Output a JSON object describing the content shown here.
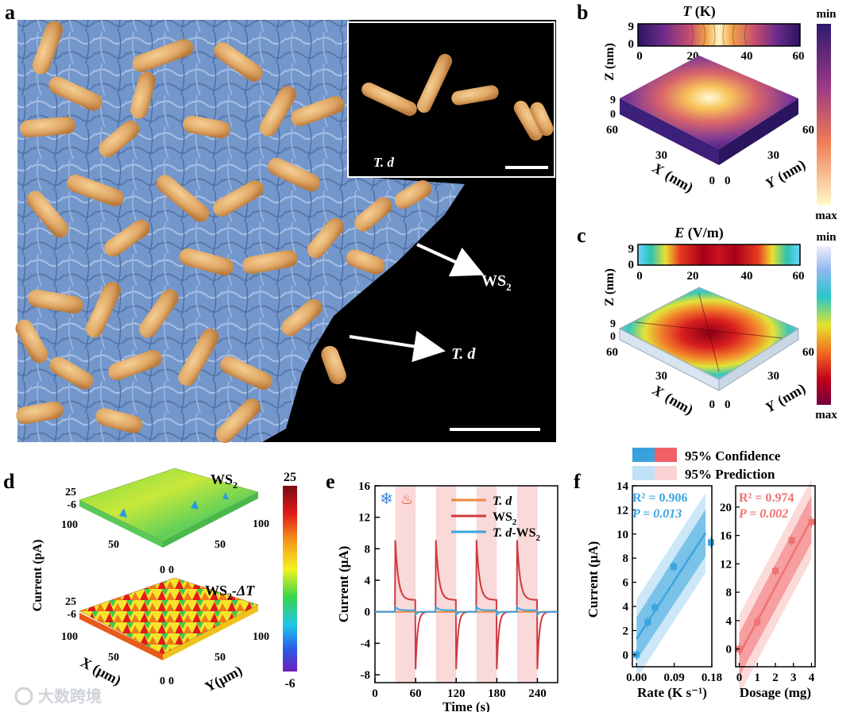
{
  "panels": {
    "a": {
      "letter": "a",
      "inset_label": "T. d",
      "arrow_label_ws2": "WS",
      "arrow_label_ws2_sub": "2",
      "arrow_label_td": "T. d",
      "colors": {
        "substrate": "#6f93c8",
        "bacteria": "#e0a866",
        "background": "#000000"
      }
    },
    "b": {
      "letter": "b",
      "title_sym": "T",
      "title_unit": " (K)",
      "z_label": "Z (nm)",
      "z_ticks": [
        "9",
        "0"
      ],
      "x_ticks": [
        "0",
        "20",
        "40",
        "60"
      ],
      "iso_x_label": "X (nm)",
      "iso_y_label": "Y (nm)",
      "iso_x_ticks": [
        "60",
        "30",
        "0"
      ],
      "iso_y_ticks": [
        "0",
        "30",
        "60"
      ],
      "iso_z_ticks": [
        "9",
        "0"
      ],
      "colorbar_top": "min",
      "colorbar_bottom": "max"
    },
    "c": {
      "letter": "c",
      "title_sym": "E",
      "title_unit": " (V/m)",
      "z_label": "Z (nm)",
      "z_ticks": [
        "9",
        "0"
      ],
      "x_ticks": [
        "0",
        "20",
        "40",
        "60"
      ],
      "iso_x_label": "X (nm)",
      "iso_y_label": "Y (nm)",
      "iso_x_ticks": [
        "60",
        "30",
        "0"
      ],
      "iso_y_ticks": [
        "0",
        "30",
        "60"
      ],
      "iso_z_ticks": [
        "9",
        "0"
      ],
      "colorbar_top": "min",
      "colorbar_bottom": "max"
    },
    "d": {
      "letter": "d",
      "top_label": "WS",
      "top_label_sub": "2",
      "bottom_label": "WS",
      "bottom_label_sub": "2",
      "bottom_label_suffix": "-ΔT",
      "z_label": "Current (pA)",
      "z_ticks": [
        "25",
        "-6"
      ],
      "x_label": "X (μm)",
      "y_label": "Y(μm)",
      "x_ticks": [
        "100",
        "50",
        "0"
      ],
      "y_ticks": [
        "0",
        "50",
        "100"
      ],
      "colorbar_max": "25",
      "colorbar_min": "-6"
    },
    "f": {
      "letter": "f",
      "legend_confidence": "95% Confidence",
      "legend_prediction": "95% Prediction",
      "ylabel": "Current (μA)",
      "left_stats": {
        "r2": "R² = 0.906",
        "p": "P = 0.013"
      },
      "right_stats": {
        "r2": "R² = 0.974",
        "p": "P = 0.002"
      }
    }
  },
  "chart_data": [
    {
      "type": "line",
      "panel": "e",
      "xlabel": "Time (s)",
      "ylabel": "Current (μA)",
      "xlim": [
        0,
        270
      ],
      "ylim": [
        -9,
        16
      ],
      "x_ticks": [
        0,
        60,
        120,
        180,
        240
      ],
      "y_ticks": [
        -8,
        -4,
        0,
        4,
        8,
        12,
        16
      ],
      "shaded_periods_s": [
        [
          30,
          60
        ],
        [
          90,
          120
        ],
        [
          150,
          180
        ],
        [
          210,
          240
        ]
      ],
      "legend": [
        "T. d",
        "WS2",
        "T. d-WS2"
      ],
      "series": [
        {
          "name": "T. d",
          "color": "#f0883c",
          "values_note": "~0 throughout"
        },
        {
          "name": "WS2",
          "color": "#cf3a3f",
          "on_peak": 9.1,
          "on_end": 1.5,
          "off_trough": -7.3
        },
        {
          "name": "T. d-WS2",
          "color": "#3aa6e0",
          "on_peak": 0.6,
          "off_trough": -0.4
        }
      ]
    },
    {
      "type": "scatter",
      "panel": "f-left",
      "xlabel": "Rate (K s⁻¹)",
      "ylabel": "Current (μA)",
      "xlim": [
        -0.01,
        0.18
      ],
      "ylim": [
        -1,
        14
      ],
      "x_ticks": [
        "0.00",
        "0.09",
        "0.18"
      ],
      "y_ticks": [
        0,
        2,
        4,
        6,
        8,
        10,
        12,
        14
      ],
      "color": "#3aa6e0",
      "x": [
        0.0,
        0.027,
        0.044,
        0.089,
        0.178
      ],
      "y": [
        0.0,
        2.7,
        3.9,
        7.3,
        9.3
      ],
      "fit": {
        "x": [
          0.0,
          0.165
        ],
        "y": [
          1.3,
          10.1
        ]
      }
    },
    {
      "type": "scatter",
      "panel": "f-right",
      "xlabel": "Dosage (mg)",
      "xlim": [
        -0.2,
        4.2
      ],
      "ylim": [
        -2.5,
        23
      ],
      "x_ticks": [
        0,
        1,
        2,
        3,
        4
      ],
      "y_ticks": [
        0,
        4,
        8,
        12,
        16,
        20
      ],
      "color": "#f07272",
      "x": [
        0,
        1,
        2,
        2.9,
        4
      ],
      "y": [
        0.0,
        3.8,
        11.0,
        15.3,
        17.9
      ],
      "fit": {
        "x": [
          0,
          4
        ],
        "y": [
          -0.8,
          18.3
        ]
      }
    }
  ],
  "watermark": "大数跨境"
}
